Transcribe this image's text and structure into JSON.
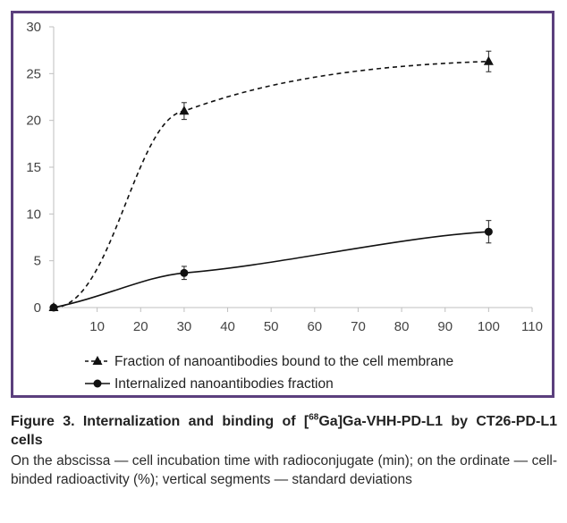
{
  "chart_data": {
    "type": "line",
    "title": "",
    "xlabel": "",
    "ylabel": "",
    "xlim": [
      0,
      110
    ],
    "ylim": [
      0,
      30
    ],
    "x_ticks": [
      10,
      20,
      30,
      40,
      50,
      60,
      70,
      80,
      90,
      100,
      110
    ],
    "y_ticks": [
      0,
      5,
      10,
      15,
      20,
      25,
      30
    ],
    "grid": false,
    "legend_position": "bottom",
    "series": [
      {
        "name": "Fraction of nanoantibodies bound to the cell membrane",
        "marker": "triangle",
        "line_style": "dashed",
        "color": "#111111",
        "x": [
          0,
          30,
          100
        ],
        "y": [
          0,
          21.0,
          26.3
        ],
        "error": [
          0,
          0.9,
          1.1
        ]
      },
      {
        "name": "Internalized nanoantibodies fraction",
        "marker": "circle",
        "line_style": "solid",
        "color": "#111111",
        "x": [
          0,
          30,
          100
        ],
        "y": [
          0,
          3.7,
          8.1
        ],
        "error": [
          0,
          0.7,
          1.2
        ]
      }
    ]
  },
  "caption": {
    "title_prefix": "Figure 3. Internalization and binding of [",
    "title_sup": "68",
    "title_suffix": "Ga]Ga-VHH-PD-L1 by CT26-PD-L1 cells",
    "description": "On the abscissa — cell incubation time with radioconjugate (min); on the ordinate — cell-binded radioactivity (%); vertical segments — standard deviations"
  }
}
